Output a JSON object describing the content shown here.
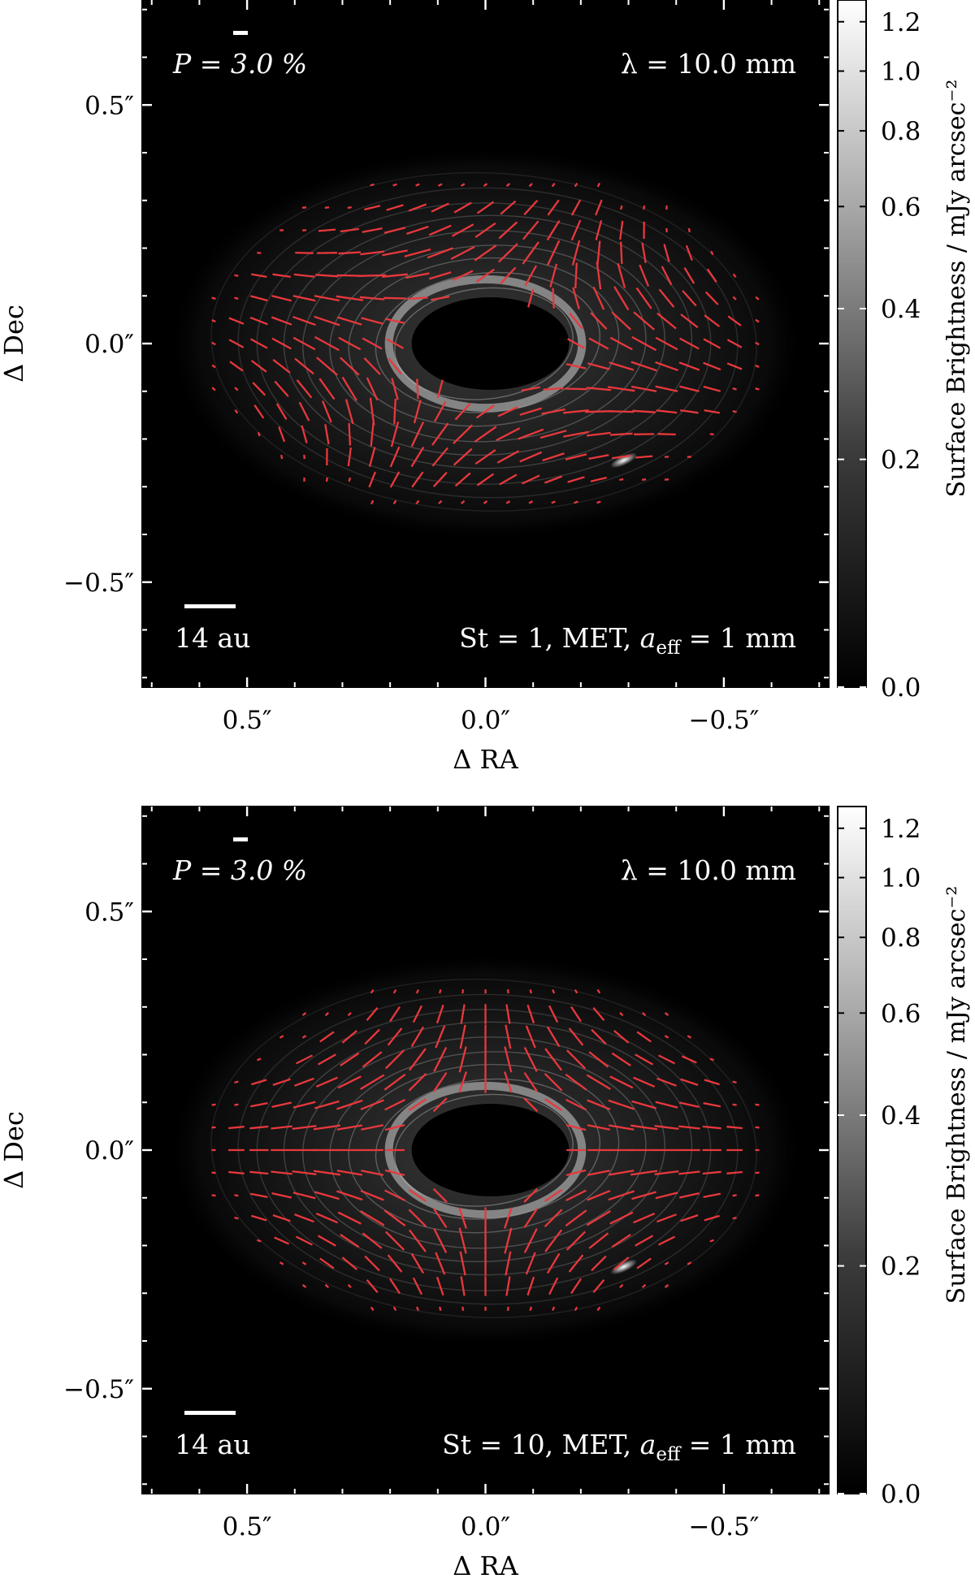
{
  "chart_data": [
    {
      "type": "polarization_map",
      "annotation_pol": "P = 3.0 %",
      "annotation_lambda": "λ = 10.0 mm",
      "model_label": "St = 1, MET, a_eff = 1 mm",
      "model_label_parts": {
        "prefix": "St = 1, MET, ",
        "a": "a",
        "sub": "eff",
        "suffix": " = 1 mm"
      },
      "scale_bar_label": "14 au",
      "xlabel": "Δ RA",
      "ylabel": "Δ Dec",
      "xlim": [
        0.72,
        -0.72
      ],
      "ylim": [
        -0.72,
        0.72
      ],
      "xtick_values": [
        0.5,
        0.0,
        -0.5
      ],
      "xtick_labels": [
        "0.5″",
        "0.0″",
        "−0.5″"
      ],
      "ytick_values": [
        0.5,
        0.0,
        -0.5
      ],
      "ytick_labels": [
        "0.5″",
        "0.0″",
        "−0.5″"
      ],
      "colorbar": {
        "label": "Surface Brightness / mJy arcsec⁻²",
        "range": [
          0.0,
          1.3
        ],
        "scale": "asinh",
        "tick_values": [
          0.0,
          0.2,
          0.4,
          0.6,
          0.8,
          1.0,
          1.2
        ],
        "tick_labels": [
          "0.0",
          "0.2",
          "0.4",
          "0.6",
          "0.8",
          "1.0",
          "1.2"
        ]
      },
      "disk": {
        "outer_radius_arcsec": 0.62,
        "inclination_ratio": 0.62,
        "cavity_radius_arcsec": 0.15
      },
      "vector_pattern": "azimuthal_spiral",
      "vector_color": "#e8383d"
    },
    {
      "type": "polarization_map",
      "annotation_pol": "P = 3.0 %",
      "annotation_lambda": "λ = 10.0 mm",
      "model_label": "St = 10, MET, a_eff = 1 mm",
      "model_label_parts": {
        "prefix": "St = 10, MET, ",
        "a": "a",
        "sub": "eff",
        "suffix": " = 1 mm"
      },
      "scale_bar_label": "14 au",
      "xlabel": "Δ RA",
      "ylabel": "Δ Dec",
      "xlim": [
        0.72,
        -0.72
      ],
      "ylim": [
        -0.72,
        0.72
      ],
      "xtick_values": [
        0.5,
        0.0,
        -0.5
      ],
      "xtick_labels": [
        "0.5″",
        "0.0″",
        "−0.5″"
      ],
      "ytick_values": [
        0.5,
        0.0,
        -0.5
      ],
      "ytick_labels": [
        "0.5″",
        "0.0″",
        "−0.5″"
      ],
      "colorbar": {
        "label": "Surface Brightness / mJy arcsec⁻²",
        "range": [
          0.0,
          1.3
        ],
        "scale": "asinh",
        "tick_values": [
          0.0,
          0.2,
          0.4,
          0.6,
          0.8,
          1.0,
          1.2
        ],
        "tick_labels": [
          "0.0",
          "0.2",
          "0.4",
          "0.6",
          "0.8",
          "1.0",
          "1.2"
        ]
      },
      "disk": {
        "outer_radius_arcsec": 0.62,
        "inclination_ratio": 0.62,
        "cavity_radius_arcsec": 0.15
      },
      "vector_pattern": "radial",
      "vector_color": "#e8383d"
    }
  ]
}
